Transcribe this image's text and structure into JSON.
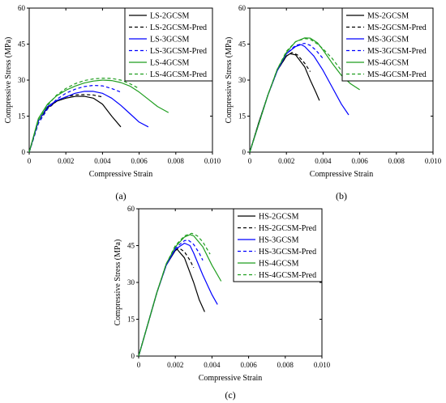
{
  "colors": {
    "black": "#000000",
    "blue": "#0000ff",
    "green": "#1f9e1f"
  },
  "chart_data": [
    {
      "type": "line",
      "panel_label": "(a)",
      "xlabel": "Compressive Strain",
      "ylabel": "Compressive Stress (MPa)",
      "xlim": [
        0,
        0.01
      ],
      "ylim": [
        0,
        60
      ],
      "xticks": [
        "0",
        "0.002",
        "0.004",
        "0.006",
        "0.008",
        "0.010"
      ],
      "yticks": [
        "0",
        "15",
        "30",
        "45",
        "60"
      ],
      "legend_position": "top-right",
      "series": [
        {
          "name": "LS-2GCSM",
          "color": "black",
          "dashed": false,
          "points": [
            [
              0,
              0
            ],
            [
              0.0005,
              13
            ],
            [
              0.001,
              18.5
            ],
            [
              0.0015,
              21.2
            ],
            [
              0.002,
              22.5
            ],
            [
              0.0025,
              23.2
            ],
            [
              0.003,
              23.3
            ],
            [
              0.0035,
              22.5
            ],
            [
              0.004,
              20
            ],
            [
              0.0045,
              15
            ],
            [
              0.005,
              10.5
            ]
          ]
        },
        {
          "name": "LS-2GCSM-Pred",
          "color": "black",
          "dashed": true,
          "points": [
            [
              0,
              0
            ],
            [
              0.0005,
              12
            ],
            [
              0.001,
              18
            ],
            [
              0.0015,
              21.2
            ],
            [
              0.002,
              23
            ],
            [
              0.0025,
              23.8
            ],
            [
              0.003,
              24
            ],
            [
              0.0035,
              23.8
            ],
            [
              0.004,
              23
            ]
          ]
        },
        {
          "name": "LS-3GCSM",
          "color": "blue",
          "dashed": false,
          "points": [
            [
              0,
              0
            ],
            [
              0.0005,
              13
            ],
            [
              0.001,
              19
            ],
            [
              0.0015,
              21.5
            ],
            [
              0.002,
              23
            ],
            [
              0.0025,
              24.5
            ],
            [
              0.003,
              25.3
            ],
            [
              0.0035,
              25.3
            ],
            [
              0.004,
              24.5
            ],
            [
              0.0045,
              22.5
            ],
            [
              0.005,
              19.5
            ],
            [
              0.0055,
              16
            ],
            [
              0.006,
              12.5
            ],
            [
              0.0065,
              10.5
            ]
          ]
        },
        {
          "name": "LS-3GCSM-Pred",
          "color": "blue",
          "dashed": true,
          "points": [
            [
              0,
              0
            ],
            [
              0.0005,
              12
            ],
            [
              0.001,
              18
            ],
            [
              0.0015,
              22
            ],
            [
              0.002,
              24.5
            ],
            [
              0.0025,
              26.2
            ],
            [
              0.003,
              27.3
            ],
            [
              0.0035,
              27.8
            ],
            [
              0.004,
              27.6
            ],
            [
              0.0045,
              26.5
            ],
            [
              0.005,
              25
            ]
          ]
        },
        {
          "name": "LS-4GCSM",
          "color": "green",
          "dashed": false,
          "points": [
            [
              0,
              0
            ],
            [
              0.0005,
              14
            ],
            [
              0.001,
              20
            ],
            [
              0.0015,
              23.5
            ],
            [
              0.002,
              25.8
            ],
            [
              0.0025,
              27.5
            ],
            [
              0.003,
              28.8
            ],
            [
              0.0035,
              29.6
            ],
            [
              0.004,
              30
            ],
            [
              0.0045,
              29.8
            ],
            [
              0.005,
              29
            ],
            [
              0.0055,
              27.5
            ],
            [
              0.006,
              25
            ],
            [
              0.0065,
              22
            ],
            [
              0.007,
              19
            ],
            [
              0.0076,
              16.5
            ]
          ]
        },
        {
          "name": "LS-4GCSM-Pred",
          "color": "green",
          "dashed": true,
          "points": [
            [
              0,
              0
            ],
            [
              0.0005,
              13
            ],
            [
              0.001,
              19.5
            ],
            [
              0.0015,
              23.8
            ],
            [
              0.002,
              26.5
            ],
            [
              0.0025,
              28.5
            ],
            [
              0.003,
              29.8
            ],
            [
              0.0035,
              30.5
            ],
            [
              0.004,
              30.8
            ],
            [
              0.0045,
              30.7
            ],
            [
              0.005,
              30
            ],
            [
              0.0055,
              28.5
            ],
            [
              0.006,
              26.5
            ]
          ]
        }
      ]
    },
    {
      "type": "line",
      "panel_label": "(b)",
      "xlabel": "Compressive Strain",
      "ylabel": "Compressive Stress (MPa)",
      "xlim": [
        0,
        0.01
      ],
      "ylim": [
        0,
        60
      ],
      "xticks": [
        "0",
        "0.002",
        "0.004",
        "0.006",
        "0.008",
        "0.010"
      ],
      "yticks": [
        "0",
        "15",
        "30",
        "45",
        "60"
      ],
      "legend_position": "top-right",
      "series": [
        {
          "name": "MS-2GCSM",
          "color": "black",
          "dashed": false,
          "points": [
            [
              0,
              0
            ],
            [
              0.0005,
              12.5
            ],
            [
              0.001,
              24
            ],
            [
              0.0015,
              34
            ],
            [
              0.002,
              40
            ],
            [
              0.0022,
              41
            ],
            [
              0.0025,
              40.5
            ],
            [
              0.003,
              35.5
            ],
            [
              0.0033,
              30
            ],
            [
              0.0036,
              25
            ],
            [
              0.0038,
              21.5
            ]
          ]
        },
        {
          "name": "MS-2GCSM-Pred",
          "color": "black",
          "dashed": true,
          "points": [
            [
              0,
              0
            ],
            [
              0.0005,
              12.5
            ],
            [
              0.001,
              24
            ],
            [
              0.0015,
              34
            ],
            [
              0.002,
              40
            ],
            [
              0.0023,
              41.5
            ],
            [
              0.0026,
              40.5
            ],
            [
              0.003,
              37
            ],
            [
              0.0033,
              33.5
            ]
          ]
        },
        {
          "name": "MS-3GCSM",
          "color": "blue",
          "dashed": false,
          "points": [
            [
              0,
              0
            ],
            [
              0.0005,
              12
            ],
            [
              0.001,
              24
            ],
            [
              0.0015,
              34
            ],
            [
              0.002,
              41
            ],
            [
              0.0025,
              44
            ],
            [
              0.0028,
              44.8
            ],
            [
              0.003,
              44
            ],
            [
              0.0035,
              40
            ],
            [
              0.004,
              34
            ],
            [
              0.0045,
              27
            ],
            [
              0.005,
              20
            ],
            [
              0.0054,
              15.5
            ]
          ]
        },
        {
          "name": "MS-3GCSM-Pred",
          "color": "blue",
          "dashed": true,
          "points": [
            [
              0,
              0
            ],
            [
              0.0005,
              12
            ],
            [
              0.001,
              24
            ],
            [
              0.0015,
              34
            ],
            [
              0.002,
              41
            ],
            [
              0.0025,
              44.5
            ],
            [
              0.003,
              45.3
            ],
            [
              0.0033,
              44.5
            ],
            [
              0.0036,
              42.5
            ],
            [
              0.004,
              39
            ]
          ]
        },
        {
          "name": "MS-4GCSM",
          "color": "green",
          "dashed": false,
          "points": [
            [
              0,
              0
            ],
            [
              0.0005,
              12
            ],
            [
              0.001,
              24
            ],
            [
              0.0015,
              34.5
            ],
            [
              0.002,
              41.5
            ],
            [
              0.0025,
              46
            ],
            [
              0.003,
              47.6
            ],
            [
              0.0033,
              47.5
            ],
            [
              0.0037,
              45.5
            ],
            [
              0.004,
              42.5
            ],
            [
              0.0045,
              37
            ],
            [
              0.005,
              32
            ],
            [
              0.0055,
              28.5
            ],
            [
              0.006,
              26
            ]
          ]
        },
        {
          "name": "MS-4GCSM-Pred",
          "color": "green",
          "dashed": true,
          "points": [
            [
              0,
              0
            ],
            [
              0.0005,
              12
            ],
            [
              0.001,
              24
            ],
            [
              0.0015,
              34.5
            ],
            [
              0.002,
              42
            ],
            [
              0.0025,
              46
            ],
            [
              0.003,
              47.3
            ],
            [
              0.0033,
              47
            ],
            [
              0.0037,
              45
            ],
            [
              0.004,
              43
            ],
            [
              0.0045,
              39
            ],
            [
              0.005,
              34
            ]
          ]
        }
      ]
    },
    {
      "type": "line",
      "panel_label": "(c)",
      "xlabel": "Compressive Strain",
      "ylabel": "Compressive Stress (MPa)",
      "xlim": [
        0,
        0.01
      ],
      "ylim": [
        0,
        60
      ],
      "xticks": [
        "0",
        "0.002",
        "0.004",
        "0.006",
        "0.008",
        "0.010"
      ],
      "yticks": [
        "0",
        "15",
        "30",
        "45",
        "60"
      ],
      "legend_position": "top-right",
      "series": [
        {
          "name": "HS-2GCSM",
          "color": "black",
          "dashed": false,
          "points": [
            [
              0,
              0
            ],
            [
              0.0005,
              13
            ],
            [
              0.001,
              26
            ],
            [
              0.0015,
              37
            ],
            [
              0.002,
              43
            ],
            [
              0.0021,
              43.5
            ],
            [
              0.0025,
              40
            ],
            [
              0.003,
              30
            ],
            [
              0.0033,
              23
            ],
            [
              0.0036,
              18
            ]
          ]
        },
        {
          "name": "HS-2GCSM-Pred",
          "color": "black",
          "dashed": true,
          "points": [
            [
              0,
              0
            ],
            [
              0.0005,
              13
            ],
            [
              0.001,
              26
            ],
            [
              0.0015,
              37
            ],
            [
              0.002,
              43.5
            ],
            [
              0.0022,
              44
            ],
            [
              0.0025,
              42.5
            ],
            [
              0.0028,
              39
            ],
            [
              0.003,
              36
            ]
          ]
        },
        {
          "name": "HS-3GCSM",
          "color": "blue",
          "dashed": false,
          "points": [
            [
              0,
              0
            ],
            [
              0.0005,
              13
            ],
            [
              0.001,
              26
            ],
            [
              0.0015,
              37
            ],
            [
              0.002,
              43.5
            ],
            [
              0.0025,
              46
            ],
            [
              0.0028,
              45
            ],
            [
              0.003,
              42
            ],
            [
              0.0035,
              33
            ],
            [
              0.004,
              25
            ],
            [
              0.0043,
              21
            ]
          ]
        },
        {
          "name": "HS-3GCSM-Pred",
          "color": "blue",
          "dashed": true,
          "points": [
            [
              0,
              0
            ],
            [
              0.0005,
              13
            ],
            [
              0.001,
              26
            ],
            [
              0.0015,
              37
            ],
            [
              0.002,
              44
            ],
            [
              0.0025,
              47
            ],
            [
              0.0027,
              47.3
            ],
            [
              0.003,
              45.5
            ],
            [
              0.0033,
              42
            ],
            [
              0.0035,
              39
            ]
          ]
        },
        {
          "name": "HS-4GCSM",
          "color": "green",
          "dashed": false,
          "points": [
            [
              0,
              0
            ],
            [
              0.0005,
              13
            ],
            [
              0.001,
              26
            ],
            [
              0.0015,
              37.5
            ],
            [
              0.002,
              44.5
            ],
            [
              0.0025,
              48.5
            ],
            [
              0.0028,
              49.5
            ],
            [
              0.003,
              49
            ],
            [
              0.0035,
              44.5
            ],
            [
              0.004,
              37
            ],
            [
              0.0045,
              30.5
            ]
          ]
        },
        {
          "name": "HS-4GCSM-Pred",
          "color": "green",
          "dashed": true,
          "points": [
            [
              0,
              0
            ],
            [
              0.0005,
              13
            ],
            [
              0.001,
              26
            ],
            [
              0.0015,
              37.5
            ],
            [
              0.002,
              45
            ],
            [
              0.0025,
              49
            ],
            [
              0.0029,
              50
            ],
            [
              0.0032,
              49
            ],
            [
              0.0035,
              46.5
            ],
            [
              0.0039,
              41.5
            ]
          ]
        }
      ]
    }
  ]
}
